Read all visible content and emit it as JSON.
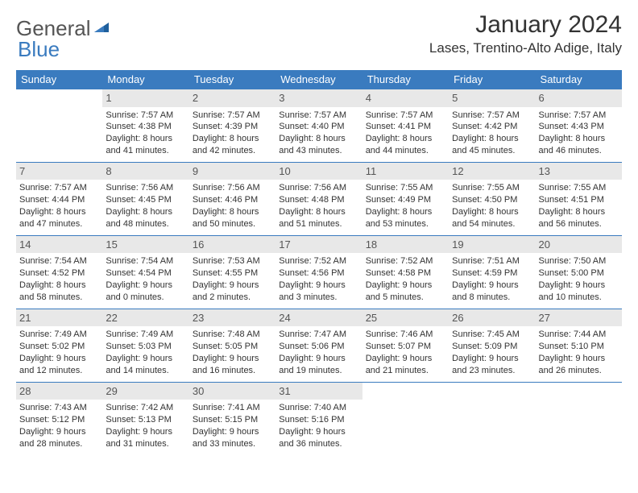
{
  "logo": {
    "part1": "General",
    "part2": "Blue"
  },
  "title": "January 2024",
  "location": "Lases, Trentino-Alto Adige, Italy",
  "colors": {
    "accent": "#3a7bbf",
    "daynum_bg": "#e8e8e8",
    "text": "#333333"
  },
  "day_headers": [
    "Sunday",
    "Monday",
    "Tuesday",
    "Wednesday",
    "Thursday",
    "Friday",
    "Saturday"
  ],
  "weeks": [
    [
      null,
      {
        "n": "1",
        "sr": "7:57 AM",
        "ss": "4:38 PM",
        "dl": "8 hours and 41 minutes."
      },
      {
        "n": "2",
        "sr": "7:57 AM",
        "ss": "4:39 PM",
        "dl": "8 hours and 42 minutes."
      },
      {
        "n": "3",
        "sr": "7:57 AM",
        "ss": "4:40 PM",
        "dl": "8 hours and 43 minutes."
      },
      {
        "n": "4",
        "sr": "7:57 AM",
        "ss": "4:41 PM",
        "dl": "8 hours and 44 minutes."
      },
      {
        "n": "5",
        "sr": "7:57 AM",
        "ss": "4:42 PM",
        "dl": "8 hours and 45 minutes."
      },
      {
        "n": "6",
        "sr": "7:57 AM",
        "ss": "4:43 PM",
        "dl": "8 hours and 46 minutes."
      }
    ],
    [
      {
        "n": "7",
        "sr": "7:57 AM",
        "ss": "4:44 PM",
        "dl": "8 hours and 47 minutes."
      },
      {
        "n": "8",
        "sr": "7:56 AM",
        "ss": "4:45 PM",
        "dl": "8 hours and 48 minutes."
      },
      {
        "n": "9",
        "sr": "7:56 AM",
        "ss": "4:46 PM",
        "dl": "8 hours and 50 minutes."
      },
      {
        "n": "10",
        "sr": "7:56 AM",
        "ss": "4:48 PM",
        "dl": "8 hours and 51 minutes."
      },
      {
        "n": "11",
        "sr": "7:55 AM",
        "ss": "4:49 PM",
        "dl": "8 hours and 53 minutes."
      },
      {
        "n": "12",
        "sr": "7:55 AM",
        "ss": "4:50 PM",
        "dl": "8 hours and 54 minutes."
      },
      {
        "n": "13",
        "sr": "7:55 AM",
        "ss": "4:51 PM",
        "dl": "8 hours and 56 minutes."
      }
    ],
    [
      {
        "n": "14",
        "sr": "7:54 AM",
        "ss": "4:52 PM",
        "dl": "8 hours and 58 minutes."
      },
      {
        "n": "15",
        "sr": "7:54 AM",
        "ss": "4:54 PM",
        "dl": "9 hours and 0 minutes."
      },
      {
        "n": "16",
        "sr": "7:53 AM",
        "ss": "4:55 PM",
        "dl": "9 hours and 2 minutes."
      },
      {
        "n": "17",
        "sr": "7:52 AM",
        "ss": "4:56 PM",
        "dl": "9 hours and 3 minutes."
      },
      {
        "n": "18",
        "sr": "7:52 AM",
        "ss": "4:58 PM",
        "dl": "9 hours and 5 minutes."
      },
      {
        "n": "19",
        "sr": "7:51 AM",
        "ss": "4:59 PM",
        "dl": "9 hours and 8 minutes."
      },
      {
        "n": "20",
        "sr": "7:50 AM",
        "ss": "5:00 PM",
        "dl": "9 hours and 10 minutes."
      }
    ],
    [
      {
        "n": "21",
        "sr": "7:49 AM",
        "ss": "5:02 PM",
        "dl": "9 hours and 12 minutes."
      },
      {
        "n": "22",
        "sr": "7:49 AM",
        "ss": "5:03 PM",
        "dl": "9 hours and 14 minutes."
      },
      {
        "n": "23",
        "sr": "7:48 AM",
        "ss": "5:05 PM",
        "dl": "9 hours and 16 minutes."
      },
      {
        "n": "24",
        "sr": "7:47 AM",
        "ss": "5:06 PM",
        "dl": "9 hours and 19 minutes."
      },
      {
        "n": "25",
        "sr": "7:46 AM",
        "ss": "5:07 PM",
        "dl": "9 hours and 21 minutes."
      },
      {
        "n": "26",
        "sr": "7:45 AM",
        "ss": "5:09 PM",
        "dl": "9 hours and 23 minutes."
      },
      {
        "n": "27",
        "sr": "7:44 AM",
        "ss": "5:10 PM",
        "dl": "9 hours and 26 minutes."
      }
    ],
    [
      {
        "n": "28",
        "sr": "7:43 AM",
        "ss": "5:12 PM",
        "dl": "9 hours and 28 minutes."
      },
      {
        "n": "29",
        "sr": "7:42 AM",
        "ss": "5:13 PM",
        "dl": "9 hours and 31 minutes."
      },
      {
        "n": "30",
        "sr": "7:41 AM",
        "ss": "5:15 PM",
        "dl": "9 hours and 33 minutes."
      },
      {
        "n": "31",
        "sr": "7:40 AM",
        "ss": "5:16 PM",
        "dl": "9 hours and 36 minutes."
      },
      null,
      null,
      null
    ]
  ]
}
